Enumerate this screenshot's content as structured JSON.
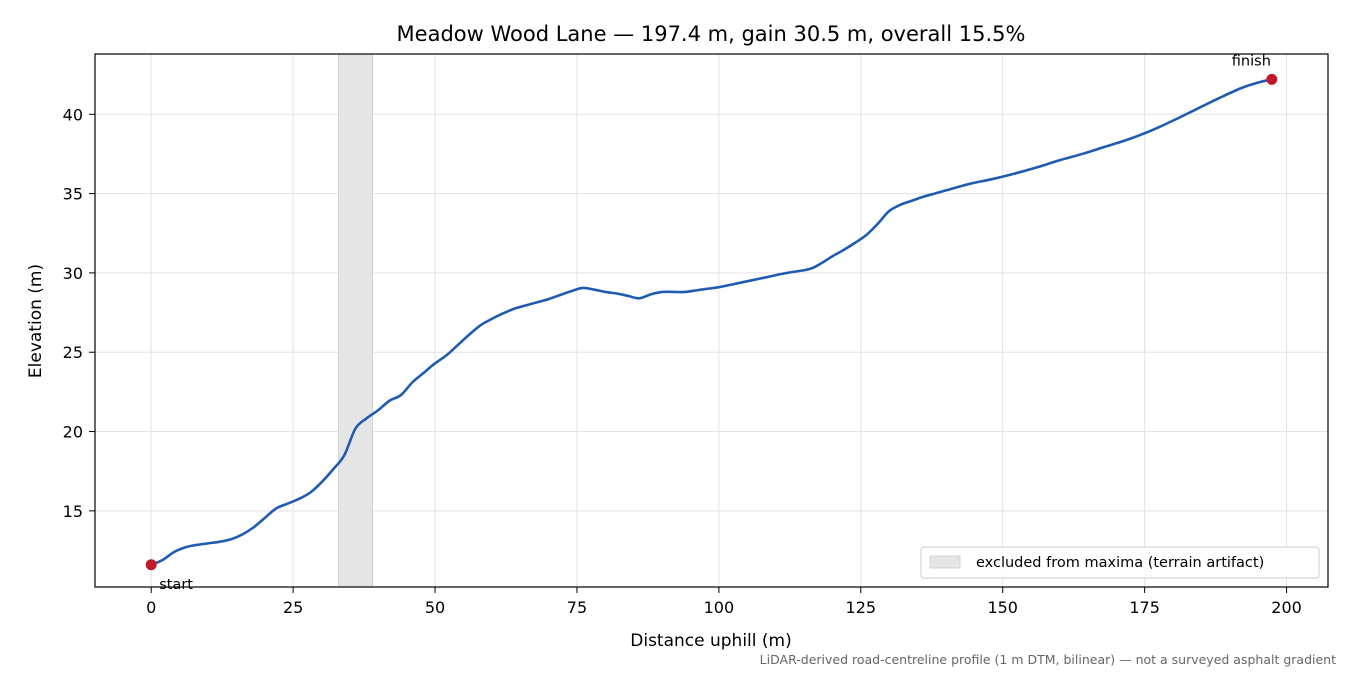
{
  "chart_data": {
    "type": "line",
    "title": "Meadow Wood Lane — 197.4 m, gain 30.5 m, overall 15.5%",
    "xlabel": "Distance uphill (m)",
    "ylabel": "Elevation (m)",
    "xlim": [
      -9.9,
      207.3
    ],
    "ylim": [
      10.2,
      43.8
    ],
    "xticks": [
      0,
      25,
      50,
      75,
      100,
      125,
      150,
      175,
      200
    ],
    "yticks": [
      15,
      20,
      25,
      30,
      35,
      40
    ],
    "grid": true,
    "series": [
      {
        "color": "#1f5bb0",
        "x": [
          0,
          2,
          4,
          6,
          8,
          10,
          12,
          14,
          16,
          18,
          20,
          22,
          24,
          26,
          28,
          30,
          32,
          34,
          36,
          38,
          40,
          42,
          44,
          46,
          48,
          50,
          52,
          54,
          56,
          58,
          60,
          62,
          64,
          66,
          68,
          70,
          72,
          74,
          76,
          78,
          80,
          82,
          84,
          86,
          88,
          90,
          92,
          94,
          96,
          98,
          100,
          104,
          108,
          112,
          116,
          118,
          120,
          122,
          124,
          126,
          128,
          130,
          132,
          134,
          136,
          138,
          140,
          144,
          148,
          152,
          156,
          160,
          164,
          168,
          172,
          176,
          180,
          184,
          188,
          192,
          195,
          197.4
        ],
        "y": [
          11.6,
          11.9,
          12.4,
          12.7,
          12.85,
          12.95,
          13.05,
          13.2,
          13.5,
          13.95,
          14.55,
          15.15,
          15.45,
          15.75,
          16.15,
          16.8,
          17.6,
          18.5,
          20.2,
          20.85,
          21.35,
          21.95,
          22.3,
          23.1,
          23.7,
          24.3,
          24.8,
          25.45,
          26.1,
          26.7,
          27.1,
          27.45,
          27.75,
          27.95,
          28.15,
          28.35,
          28.6,
          28.85,
          29.05,
          28.95,
          28.8,
          28.7,
          28.55,
          28.4,
          28.65,
          28.8,
          28.8,
          28.8,
          28.9,
          29.0,
          29.1,
          29.4,
          29.7,
          30.0,
          30.25,
          30.6,
          31.05,
          31.45,
          31.9,
          32.4,
          33.1,
          33.9,
          34.3,
          34.55,
          34.8,
          35.0,
          35.2,
          35.6,
          35.9,
          36.25,
          36.65,
          37.1,
          37.5,
          37.95,
          38.4,
          38.95,
          39.6,
          40.3,
          41.0,
          41.65,
          42.0,
          42.2
        ]
      }
    ],
    "markers": [
      {
        "label": "start",
        "x": 0,
        "y": 11.6,
        "color": "#c0192b"
      },
      {
        "label": "finish",
        "x": 197.4,
        "y": 42.2,
        "color": "#c0192b"
      }
    ],
    "excluded_band": {
      "x_from": 33,
      "x_to": 39,
      "color": "#e5e5e5"
    },
    "legend": {
      "position": "lower-right",
      "entries": [
        "excluded from maxima (terrain artifact)"
      ]
    },
    "footnote": "LiDAR-derived road-centreline profile (1 m DTM, bilinear) — not a surveyed asphalt gradient"
  }
}
